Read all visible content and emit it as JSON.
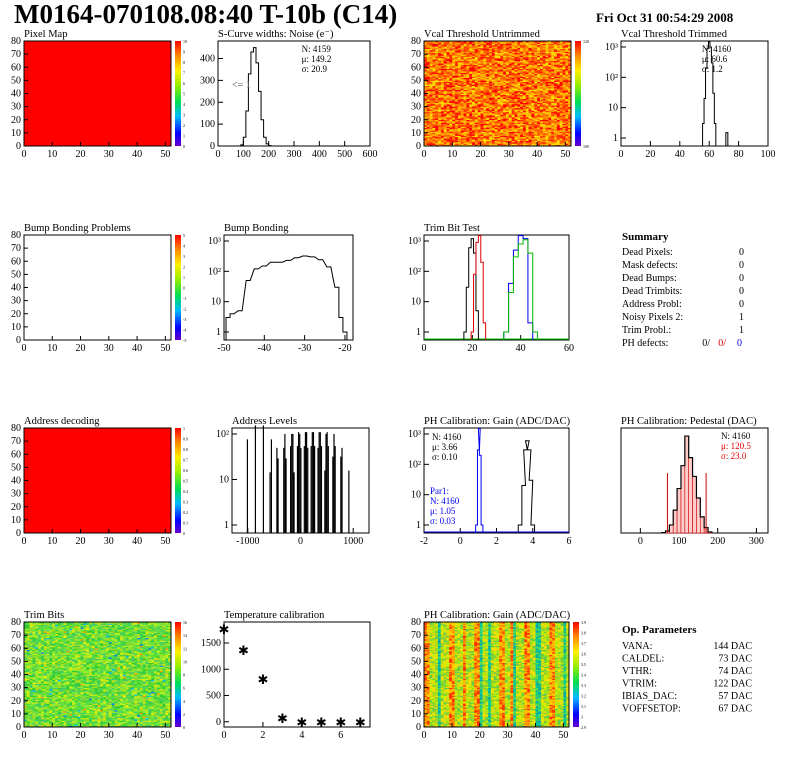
{
  "header": {
    "title": "M0164-070108.08:40 T-10b (C14)",
    "date": "Fri Oct 31 00:54:29 2008"
  },
  "panels": [
    {
      "id": "pixel-map",
      "title": "Pixel Map",
      "kind": "map",
      "fill": "#ff0000",
      "xticks": [
        "0",
        "10",
        "20",
        "30",
        "40",
        "50"
      ],
      "yticks": [
        "0",
        "10",
        "20",
        "30",
        "40",
        "50",
        "60",
        "70",
        "80"
      ],
      "zticks": [
        "0",
        "1",
        "2",
        "3",
        "4",
        "5",
        "6",
        "7",
        "8",
        "9",
        "10"
      ]
    },
    {
      "id": "scurve",
      "title": "S-Curve widths: Noise (e⁻)",
      "kind": "hist",
      "xticks": [
        "0",
        "100",
        "200",
        "300",
        "400",
        "500",
        "600"
      ],
      "yticks": [
        "0",
        "100",
        "200",
        "300",
        "400"
      ],
      "stats": [
        "N: 4159",
        "μ: 149.2",
        "σ: 20.9"
      ],
      "annotation": "<= 1"
    },
    {
      "id": "vcal-untrimmed",
      "title": "Vcal Threshold Untrimmed",
      "kind": "map",
      "fill": "heat",
      "xticks": [
        "0",
        "10",
        "20",
        "30",
        "40",
        "50"
      ],
      "yticks": [
        "0",
        "10",
        "20",
        "30",
        "40",
        "50",
        "60",
        "70",
        "80"
      ],
      "zticks": [
        "100",
        "120"
      ]
    },
    {
      "id": "vcal-trimmed",
      "title": "Vcal Threshold Trimmed",
      "kind": "hist-log",
      "xticks": [
        "0",
        "20",
        "40",
        "60",
        "80",
        "100"
      ],
      "stats": [
        "N: 4160",
        "μ: 60.6",
        "σ:  1.2"
      ]
    },
    {
      "id": "bump-problems",
      "title": "Bump Bonding Problems",
      "kind": "map",
      "fill": "#ffffff",
      "xticks": [
        "0",
        "10",
        "20",
        "30",
        "40",
        "50"
      ],
      "yticks": [
        "0",
        "10",
        "20",
        "30",
        "40",
        "50",
        "60",
        "70",
        "80"
      ],
      "zticks": [
        "-5",
        "-4",
        "-3",
        "-2",
        "-1",
        "0",
        "1",
        "2",
        "3",
        "4",
        "5"
      ]
    },
    {
      "id": "bump-bonding",
      "title": "Bump Bonding",
      "kind": "hist-log",
      "xticks": [
        "-50",
        "-40",
        "-30",
        "-20"
      ]
    },
    {
      "id": "trim-bit-test",
      "title": "Trim Bit Test",
      "kind": "hist-log",
      "xticks": [
        "0",
        "20",
        "40",
        "60"
      ]
    },
    {
      "id": "address-decoding",
      "title": "Address decoding",
      "kind": "map",
      "fill": "#ff0000",
      "xticks": [
        "0",
        "10",
        "20",
        "30",
        "40",
        "50"
      ],
      "yticks": [
        "0",
        "10",
        "20",
        "30",
        "40",
        "50",
        "60",
        "70",
        "80"
      ],
      "zticks": [
        "0",
        "0.1",
        "0.2",
        "0.3",
        "0.4",
        "0.5",
        "0.6",
        "0.7",
        "0.8",
        "0.9",
        "1"
      ]
    },
    {
      "id": "address-levels",
      "title": "Address Levels",
      "kind": "hist-log",
      "xticks": [
        "-1000",
        "0",
        "1000"
      ]
    },
    {
      "id": "ph-gain",
      "title": "PH Calibration: Gain (ADC/DAC)",
      "kind": "hist-log",
      "xticks": [
        "-2",
        "0",
        "2",
        "4",
        "6"
      ],
      "stats": [
        "N: 4160",
        "μ: 3.66",
        "σ: 0.10"
      ],
      "stats2": [
        "Par1:",
        "N: 4160",
        "μ: 1.05",
        "σ: 0.03"
      ]
    },
    {
      "id": "ph-pedestal",
      "title": "PH Calibration: Pedestal (DAC)",
      "kind": "hist",
      "xticks": [
        "0",
        "100",
        "200",
        "300"
      ],
      "stats": [
        "N: 4160",
        "μ: 120.5",
        "σ: 23.0"
      ]
    },
    {
      "id": "trim-bits",
      "title": "Trim Bits",
      "kind": "map",
      "fill": "noise",
      "xticks": [
        "0",
        "10",
        "20",
        "30",
        "40",
        "50"
      ],
      "yticks": [
        "0",
        "10",
        "20",
        "30",
        "40",
        "50",
        "60",
        "70",
        "80"
      ],
      "zticks": [
        "0",
        "2",
        "4",
        "6",
        "8",
        "10",
        "12",
        "14",
        "16"
      ]
    },
    {
      "id": "temp-cal",
      "title": "Temperature calibration",
      "kind": "scatter",
      "xticks": [
        "0",
        "2",
        "4",
        "6"
      ],
      "yticks": [
        "0",
        "500",
        "1000",
        "1500"
      ]
    },
    {
      "id": "ph-gain-map",
      "title": "PH Calibration: Gain (ADC/DAC)",
      "kind": "map",
      "fill": "stripes",
      "xticks": [
        "0",
        "10",
        "20",
        "30",
        "40",
        "50"
      ],
      "yticks": [
        "0",
        "10",
        "20",
        "30",
        "40",
        "50",
        "60",
        "70",
        "80"
      ],
      "zticks": [
        "2.9",
        "3",
        "3.1",
        "3.2",
        "3.3",
        "3.4",
        "3.5",
        "3.6",
        "3.7",
        "3.8",
        "3.9"
      ]
    }
  ],
  "log_ticks": [
    "1",
    "10",
    "10²",
    "10³"
  ],
  "summary": {
    "title": "Summary",
    "rows": [
      {
        "label": "Dead Pixels:",
        "value": "0"
      },
      {
        "label": "Mask defects:",
        "value": "0"
      },
      {
        "label": "Dead Bumps:",
        "value": "0"
      },
      {
        "label": "Dead Trimbits:",
        "value": "0"
      },
      {
        "label": "Address Probl:",
        "value": "0"
      },
      {
        "label": "Noisy Pixels 2:",
        "value": "1"
      },
      {
        "label": "Trim Probl.:",
        "value": "1"
      }
    ],
    "ph_label": "PH defects:",
    "ph_values": [
      "0/",
      "0/",
      "0"
    ],
    "ph_colors": [
      "#000000",
      "#dd0000",
      "#0000dd"
    ]
  },
  "op_params": {
    "title": "Op. Parameters",
    "rows": [
      {
        "label": "VANA:",
        "value": "144 DAC"
      },
      {
        "label": "CALDEL:",
        "value": "73 DAC"
      },
      {
        "label": "VTHR:",
        "value": "74 DAC"
      },
      {
        "label": "VTRIM:",
        "value": "122 DAC"
      },
      {
        "label": "IBIAS_DAC:",
        "value": "57 DAC"
      },
      {
        "label": "VOFFSETOP:",
        "value": "67 DAC"
      }
    ]
  },
  "chart_data": [
    {
      "type": "heatmap",
      "title": "Pixel Map",
      "description": "all 52x80 pixels at 10",
      "xlim": [
        0,
        52
      ],
      "ylim": [
        0,
        80
      ],
      "zlim": [
        0,
        10
      ]
    },
    {
      "type": "bar",
      "title": "S-Curve widths: Noise (e⁻)",
      "xlim": [
        0,
        600
      ],
      "ylim": [
        0,
        450
      ],
      "x": [
        95,
        105,
        115,
        125,
        135,
        145,
        155,
        165,
        175,
        185,
        195,
        205
      ],
      "values": [
        5,
        40,
        160,
        330,
        430,
        450,
        380,
        250,
        120,
        40,
        10,
        2
      ]
    },
    {
      "type": "heatmap",
      "title": "Vcal Threshold Untrimmed",
      "xlim": [
        0,
        52
      ],
      "ylim": [
        0,
        80
      ],
      "zlim": [
        0,
        120
      ]
    },
    {
      "type": "bar",
      "title": "Vcal Threshold Trimmed",
      "yscale": "log",
      "xlim": [
        0,
        100
      ],
      "x": [
        56,
        57,
        58,
        59,
        60,
        61,
        62,
        63,
        64,
        72
      ],
      "values": [
        3,
        20,
        200,
        900,
        1500,
        1000,
        300,
        30,
        3,
        1
      ]
    },
    {
      "type": "heatmap",
      "title": "Bump Bonding Problems",
      "xlim": [
        0,
        52
      ],
      "ylim": [
        0,
        80
      ],
      "zlim": [
        -5,
        5
      ]
    },
    {
      "type": "bar",
      "title": "Bump Bonding",
      "yscale": "log",
      "xlim": [
        -50,
        -18
      ],
      "x": [
        -49,
        -48,
        -46,
        -44,
        -42,
        -40,
        -38,
        -36,
        -34,
        -32,
        -30,
        -28,
        -26,
        -24,
        -22,
        -21,
        -20
      ],
      "values": [
        3,
        4,
        5,
        50,
        120,
        150,
        200,
        200,
        230,
        280,
        320,
        300,
        240,
        140,
        30,
        3,
        1
      ]
    },
    {
      "type": "line",
      "title": "Trim Bit Test",
      "yscale": "log",
      "xlim": [
        0,
        60
      ],
      "series": [
        {
          "color": "black",
          "x": [
            17,
            18,
            19,
            20,
            21,
            22
          ],
          "values": [
            1,
            30,
            600,
            1200,
            400,
            5
          ]
        },
        {
          "color": "red",
          "x": [
            20,
            21,
            22,
            23,
            24,
            25
          ],
          "values": [
            1,
            80,
            900,
            1500,
            200,
            2
          ]
        },
        {
          "color": "blue",
          "x": [
            34,
            36,
            38,
            40,
            42,
            44
          ],
          "values": [
            1,
            40,
            500,
            1500,
            1200,
            2
          ]
        },
        {
          "color": "green",
          "x": [
            34,
            36,
            38,
            40,
            42,
            44,
            46
          ],
          "values": [
            1,
            20,
            300,
            800,
            1100,
            400,
            1
          ]
        }
      ]
    },
    {
      "type": "heatmap",
      "title": "Address decoding",
      "xlim": [
        0,
        52
      ],
      "ylim": [
        0,
        80
      ],
      "zlim": [
        0,
        1
      ]
    },
    {
      "type": "bar",
      "title": "Address Levels",
      "yscale": "log",
      "xlim": [
        -1300,
        1300
      ],
      "x": [
        -780,
        -350,
        -220,
        -90,
        40,
        170,
        300,
        430,
        560,
        690
      ],
      "values": [
        700,
        80,
        400,
        400,
        450,
        450,
        450,
        450,
        400,
        90
      ]
    },
    {
      "type": "line",
      "title": "PH Calibration: Gain (ADC/DAC)",
      "yscale": "log",
      "xlim": [
        -2,
        6
      ],
      "series": [
        {
          "color": "black",
          "x": [
            3.3,
            3.5,
            3.6,
            3.7,
            3.8,
            3.9,
            4.0
          ],
          "values": [
            1,
            20,
            300,
            600,
            300,
            30,
            1
          ]
        },
        {
          "color": "blue",
          "x": [
            0.9,
            1.0,
            1.05,
            1.1,
            1.2
          ],
          "values": [
            1,
            300,
            1500,
            200,
            1
          ]
        }
      ]
    },
    {
      "type": "bar",
      "title": "PH Calibration: Pedestal (DAC)",
      "xlim": [
        -50,
        330
      ],
      "x": [
        60,
        70,
        80,
        90,
        100,
        110,
        120,
        130,
        140,
        150,
        160,
        170,
        180
      ],
      "values": [
        3,
        15,
        60,
        170,
        330,
        500,
        720,
        560,
        420,
        260,
        120,
        40,
        8
      ]
    },
    {
      "type": "heatmap",
      "title": "Trim Bits",
      "xlim": [
        0,
        52
      ],
      "ylim": [
        0,
        80
      ],
      "zlim": [
        0,
        16
      ]
    },
    {
      "type": "scatter",
      "title": "Temperature calibration",
      "xlim": [
        0,
        7.5
      ],
      "ylim": [
        -100,
        1900
      ],
      "x": [
        0,
        1,
        2,
        3,
        4,
        5,
        6,
        7
      ],
      "values": [
        1750,
        1350,
        800,
        50,
        -20,
        -20,
        -20,
        -20
      ]
    },
    {
      "type": "heatmap",
      "title": "PH Calibration: Gain (ADC/DAC)",
      "xlim": [
        0,
        52
      ],
      "ylim": [
        0,
        80
      ],
      "zlim": [
        2.9,
        3.9
      ]
    }
  ]
}
